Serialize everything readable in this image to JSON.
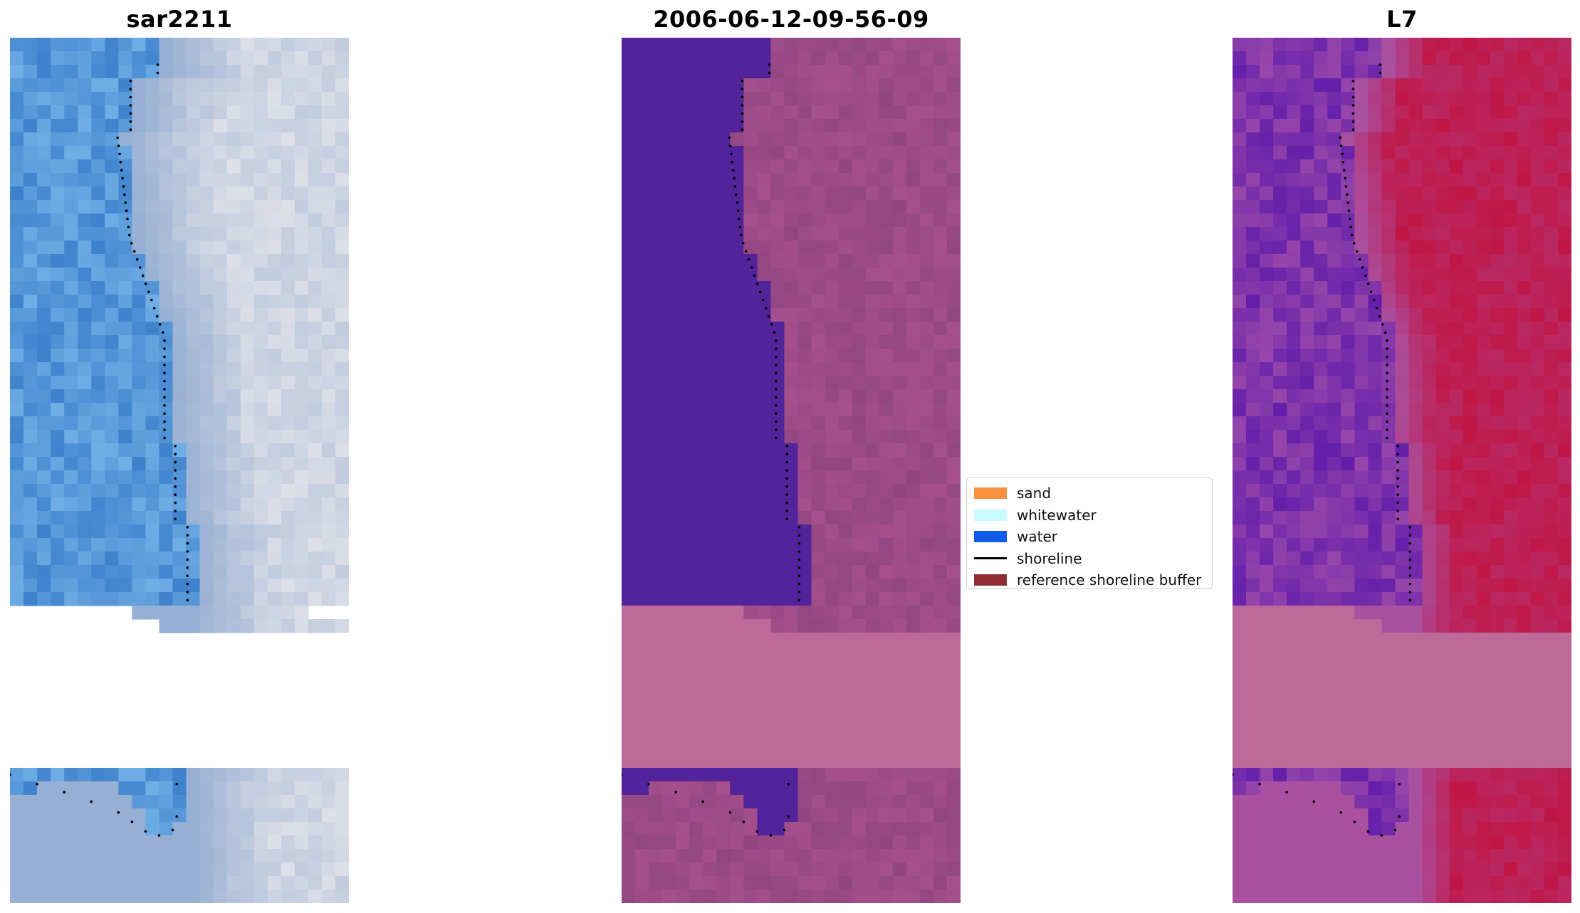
{
  "panels": [
    {
      "title": "sar2211",
      "kind": "rgb"
    },
    {
      "title": "2006-06-12-09-56-09",
      "kind": "classified"
    },
    {
      "title": "L7",
      "kind": "index"
    }
  ],
  "legend": {
    "items": [
      {
        "label": "sand",
        "color": "#f7903f",
        "type": "patch"
      },
      {
        "label": "whitewater",
        "color": "#c7fbff",
        "type": "patch"
      },
      {
        "label": "water",
        "color": "#0f5bea",
        "type": "patch"
      },
      {
        "label": "shoreline",
        "color": "#000000",
        "type": "line"
      },
      {
        "label": "reference shoreline buffer",
        "color": "#8f2d35",
        "type": "patch"
      }
    ]
  },
  "colors": {
    "nodata_overlay": "#bd6a9a",
    "water_class": "#52239a",
    "index_high": "#c01647",
    "index_low": "#7b2aa8"
  }
}
